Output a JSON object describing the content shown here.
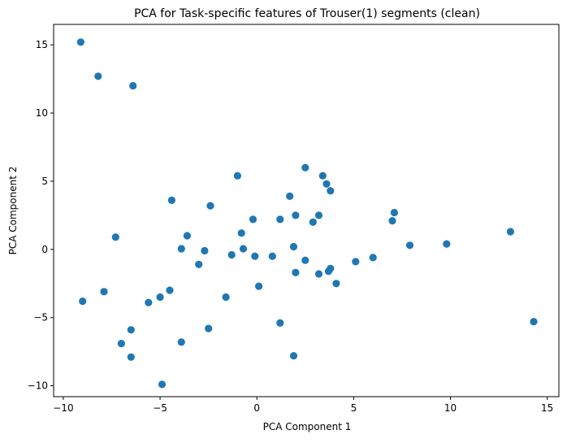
{
  "chart_data": {
    "type": "scatter",
    "title": "PCA for Task-specific features of Trouser(1) segments (clean)",
    "xlabel": "PCA Component 1",
    "ylabel": "PCA Component 2",
    "xlim": [
      -10.5,
      15.6
    ],
    "ylim": [
      -10.8,
      16.5
    ],
    "xticks": [
      -10,
      -5,
      0,
      5,
      10,
      15
    ],
    "yticks": [
      -10,
      -5,
      0,
      5,
      10,
      15
    ],
    "grid": false,
    "point_color": "#1f77b4",
    "points": [
      {
        "x": -9.1,
        "y": 15.2
      },
      {
        "x": -8.2,
        "y": 12.7
      },
      {
        "x": -6.4,
        "y": 12.0
      },
      {
        "x": -9.0,
        "y": -3.8
      },
      {
        "x": -7.9,
        "y": -3.1
      },
      {
        "x": -7.3,
        "y": 0.9
      },
      {
        "x": -7.0,
        "y": -6.9
      },
      {
        "x": -6.5,
        "y": -5.9
      },
      {
        "x": -6.5,
        "y": -7.9
      },
      {
        "x": -5.6,
        "y": -3.9
      },
      {
        "x": -5.0,
        "y": -3.5
      },
      {
        "x": -4.9,
        "y": -9.9
      },
      {
        "x": -4.5,
        "y": -3.0
      },
      {
        "x": -4.4,
        "y": 3.6
      },
      {
        "x": -3.9,
        "y": 0.05
      },
      {
        "x": -3.9,
        "y": -6.8
      },
      {
        "x": -3.6,
        "y": 1.0
      },
      {
        "x": -3.0,
        "y": -1.1
      },
      {
        "x": -2.7,
        "y": -0.1
      },
      {
        "x": -2.5,
        "y": -5.8
      },
      {
        "x": -2.4,
        "y": 3.2
      },
      {
        "x": -1.6,
        "y": -3.5
      },
      {
        "x": -1.3,
        "y": -0.4
      },
      {
        "x": -1.0,
        "y": 5.4
      },
      {
        "x": -0.8,
        "y": 1.2
      },
      {
        "x": -0.7,
        "y": 0.05
      },
      {
        "x": -0.2,
        "y": 2.2
      },
      {
        "x": -0.1,
        "y": -0.5
      },
      {
        "x": 0.1,
        "y": -2.7
      },
      {
        "x": 0.8,
        "y": -0.5
      },
      {
        "x": 1.2,
        "y": 2.2
      },
      {
        "x": 1.2,
        "y": -5.4
      },
      {
        "x": 1.7,
        "y": 3.9
      },
      {
        "x": 1.9,
        "y": 0.2
      },
      {
        "x": 1.9,
        "y": -7.8
      },
      {
        "x": 2.0,
        "y": -1.7
      },
      {
        "x": 2.0,
        "y": 2.5
      },
      {
        "x": 2.5,
        "y": 6.0
      },
      {
        "x": 2.5,
        "y": -0.8
      },
      {
        "x": 2.9,
        "y": 2.0
      },
      {
        "x": 3.2,
        "y": 2.5
      },
      {
        "x": 3.2,
        "y": -1.8
      },
      {
        "x": 3.4,
        "y": 5.4
      },
      {
        "x": 3.6,
        "y": 4.8
      },
      {
        "x": 3.7,
        "y": -1.6
      },
      {
        "x": 3.8,
        "y": 4.3
      },
      {
        "x": 3.8,
        "y": -1.4
      },
      {
        "x": 4.1,
        "y": -2.5
      },
      {
        "x": 5.1,
        "y": -0.9
      },
      {
        "x": 6.0,
        "y": -0.6
      },
      {
        "x": 7.0,
        "y": 2.1
      },
      {
        "x": 7.1,
        "y": 2.7
      },
      {
        "x": 7.9,
        "y": 0.3
      },
      {
        "x": 9.8,
        "y": 0.4
      },
      {
        "x": 13.1,
        "y": 1.3
      },
      {
        "x": 14.3,
        "y": -5.3
      }
    ]
  }
}
